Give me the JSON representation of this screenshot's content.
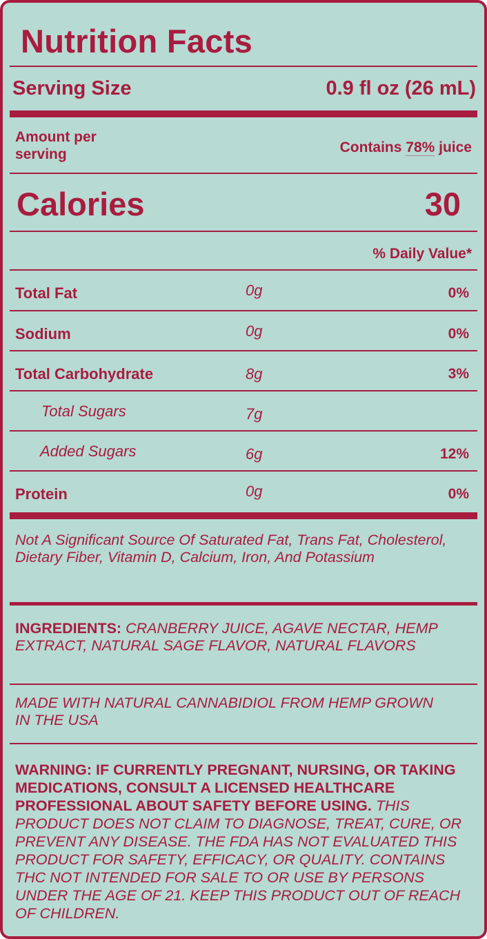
{
  "title": "Nutrition Facts",
  "serving": {
    "label": "Serving Size",
    "value": "0.9 fl oz (26 mL)"
  },
  "amount_per_serving": {
    "line1": "Amount per",
    "line2": "serving"
  },
  "juice": {
    "prefix": "Contains ",
    "percent": "78%",
    "suffix": " juice"
  },
  "calories": {
    "label": "Calories",
    "value": "30"
  },
  "daily_value_header": "% Daily Value*",
  "nutrients": [
    {
      "name": "Total Fat",
      "amount": "0g",
      "dv": "0%"
    },
    {
      "name": "Sodium",
      "amount": "0g",
      "dv": "0%"
    },
    {
      "name": "Total Carbohydrate",
      "amount": "8g",
      "dv": "3%"
    },
    {
      "name": "Total Sugars",
      "amount": "7g",
      "dv": ""
    },
    {
      "name": "Added Sugars",
      "amount": "6g",
      "dv": "12%"
    },
    {
      "name": "Protein",
      "amount": "0g",
      "dv": "0%"
    }
  ],
  "not_significant": "Not A Significant Source Of Saturated Fat, Trans Fat, Cholesterol, Dietary Fiber, Vitamin D, Calcium, Iron, And Potassium",
  "ingredients": {
    "label": "INGREDIENTS:",
    "text": "CRANBERRY JUICE, AGAVE NECTAR, HEMP EXTRACT, NATURAL SAGE FLAVOR, NATURAL FLAVORS"
  },
  "made_with": "MADE WITH NATURAL CANNABIDIOL FROM HEMP GROWN IN THE USA",
  "warning": {
    "bold": "WARNING: IF CURRENTLY PREGNANT, NURSING, OR TAKING MEDICATIONS, CONSULT A LICENSED HEALTHCARE PROFESSIONAL ABOUT SAFETY BEFORE USING.",
    "italic": "THIS PRODUCT DOES NOT CLAIM TO DIAGNOSE, TREAT, CURE, OR PREVENT ANY DISEASE. THE FDA HAS NOT EVALUATED THIS PRODUCT FOR SAFETY, EFFICACY, OR QUALITY. CONTAINS THC NOT INTENDED FOR SALE TO OR USE BY PERSONS UNDER THE AGE OF 21. KEEP THIS PRODUCT OUT OF REACH OF CHILDREN."
  },
  "colors": {
    "background": "#b7dad3",
    "accent": "#a81c3f"
  }
}
